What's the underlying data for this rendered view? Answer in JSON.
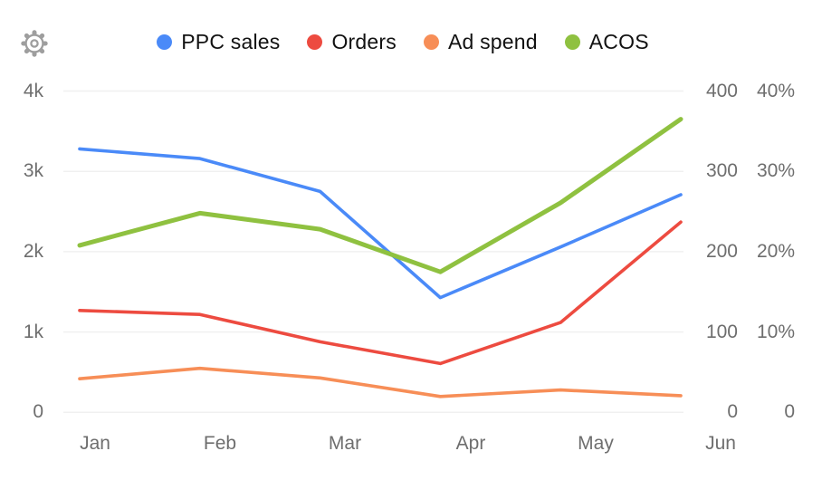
{
  "header": {
    "settings_icon": "gear"
  },
  "colors": {
    "background": "#ffffff",
    "grid": "#f0f0f0",
    "axis_text": "#6e6e6e",
    "legend_text": "#121212",
    "icon": "#9e9e9e",
    "ppc_sales": "#4a8af8",
    "orders": "#ed4b40",
    "ad_spend": "#f78e57",
    "acos": "#8fc140"
  },
  "chart_data": {
    "type": "line",
    "title": "",
    "categories": [
      "Jan",
      "Feb",
      "Mar",
      "Apr",
      "May",
      "Jun"
    ],
    "series": [
      {
        "name": "PPC sales",
        "color": "#4a8af8",
        "axis": "left",
        "values": [
          3280,
          3160,
          2750,
          1430,
          2060,
          2710
        ]
      },
      {
        "name": "Orders",
        "color": "#ed4b40",
        "axis": "right",
        "values": [
          127,
          122,
          88,
          61,
          112,
          237
        ]
      },
      {
        "name": "Ad spend",
        "color": "#f78e57",
        "axis": "right",
        "values": [
          42,
          55,
          43,
          20,
          28,
          21
        ]
      },
      {
        "name": "ACOS",
        "color": "#8fc140",
        "axis": "percent",
        "values": [
          20.8,
          24.8,
          22.8,
          17.5,
          26.1,
          36.5
        ]
      }
    ],
    "axes": {
      "left": {
        "range": [
          0,
          4000
        ],
        "ticks": [
          "4k",
          "3k",
          "2k",
          "1k",
          "0"
        ]
      },
      "right": {
        "range": [
          0,
          400
        ],
        "ticks": [
          "400",
          "300",
          "200",
          "100",
          "0"
        ]
      },
      "percent": {
        "range": [
          0,
          40
        ],
        "ticks": [
          "40%",
          "30%",
          "20%",
          "10%",
          "0"
        ]
      }
    },
    "grid": true,
    "legend_position": "top"
  }
}
